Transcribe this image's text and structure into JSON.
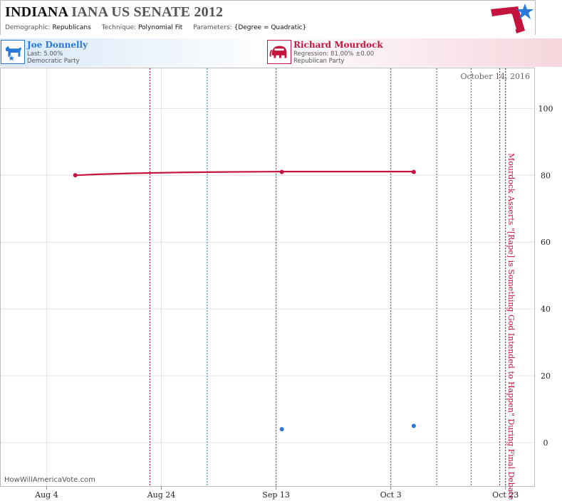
{
  "header": {
    "state": "INDIANA",
    "title_rest": "IANA US SENATE 2012",
    "demographic_label": "Demographic:",
    "demographic_value": "Republicans",
    "technique_label": "Technique:",
    "technique_value": "Polynomial Fit",
    "parameters_label": "Parameters:",
    "parameters_value": "{Degree = Quadratic}"
  },
  "candidates": {
    "dem": {
      "name": "Joe Donnelly",
      "line1": "Last: 5.00%",
      "line2": "Democratic Party",
      "color": "#2a79d9",
      "icon": "donkey-icon"
    },
    "rep": {
      "name": "Richard Mourdock",
      "line1": "Regression: 81.00% ±0.00",
      "line2": "Republican Party",
      "color": "#c4143d",
      "icon": "elephant-icon"
    }
  },
  "chart_data": {
    "type": "scatter",
    "x_ticks": [
      "Aug 4",
      "Aug 24",
      "Sep 13",
      "Oct 3",
      "Oct 23"
    ],
    "y_ticks": [
      0,
      20,
      40,
      60,
      80,
      100
    ],
    "ylim": [
      -13,
      112
    ],
    "xlim": [
      "2012-07-27",
      "2012-10-28"
    ],
    "grid": true,
    "date_annotation": "October 14, 2016",
    "event_annotation": "Mourdock Asserts \"[Rape] is Something God Intended to Happen\" During Final Debate",
    "watermark": "HowWillAmericaVote.com",
    "vlines": [
      {
        "date": "2012-08-22",
        "color": "#a0002a",
        "style": "dotted"
      },
      {
        "date": "2012-09-01",
        "color": "#1a6fc2",
        "style": "dotted"
      },
      {
        "date": "2012-09-13",
        "color": "#555555",
        "style": "dotted"
      },
      {
        "date": "2012-10-03",
        "color": "#555555",
        "style": "dotted"
      },
      {
        "date": "2012-10-11",
        "color": "#555555",
        "style": "dotted"
      },
      {
        "date": "2012-10-17",
        "color": "#555555",
        "style": "dotted"
      },
      {
        "date": "2012-10-22",
        "color": "#a0002a",
        "style": "dotted"
      },
      {
        "date": "2012-10-23",
        "color": "#a0002a",
        "style": "dotted"
      }
    ],
    "series": [
      {
        "name": "Richard Mourdock",
        "color": "#c4143d",
        "points": [
          {
            "x": "2012-08-09",
            "y": 80
          },
          {
            "x": "2012-09-14",
            "y": 81
          },
          {
            "x": "2012-10-07",
            "y": 81
          }
        ],
        "fit": [
          {
            "x": "2012-08-09",
            "y": 80.0
          },
          {
            "x": "2012-08-13",
            "y": 80.3
          },
          {
            "x": "2012-08-19",
            "y": 80.6
          },
          {
            "x": "2012-08-27",
            "y": 80.85
          },
          {
            "x": "2012-09-04",
            "y": 81.0
          },
          {
            "x": "2012-09-14",
            "y": 81.1
          },
          {
            "x": "2012-09-24",
            "y": 81.1
          },
          {
            "x": "2012-10-07",
            "y": 81.1
          }
        ]
      },
      {
        "name": "Joe Donnelly",
        "color": "#2a79d9",
        "points": [
          {
            "x": "2012-09-14",
            "y": 4
          },
          {
            "x": "2012-10-07",
            "y": 5
          }
        ]
      }
    ]
  }
}
